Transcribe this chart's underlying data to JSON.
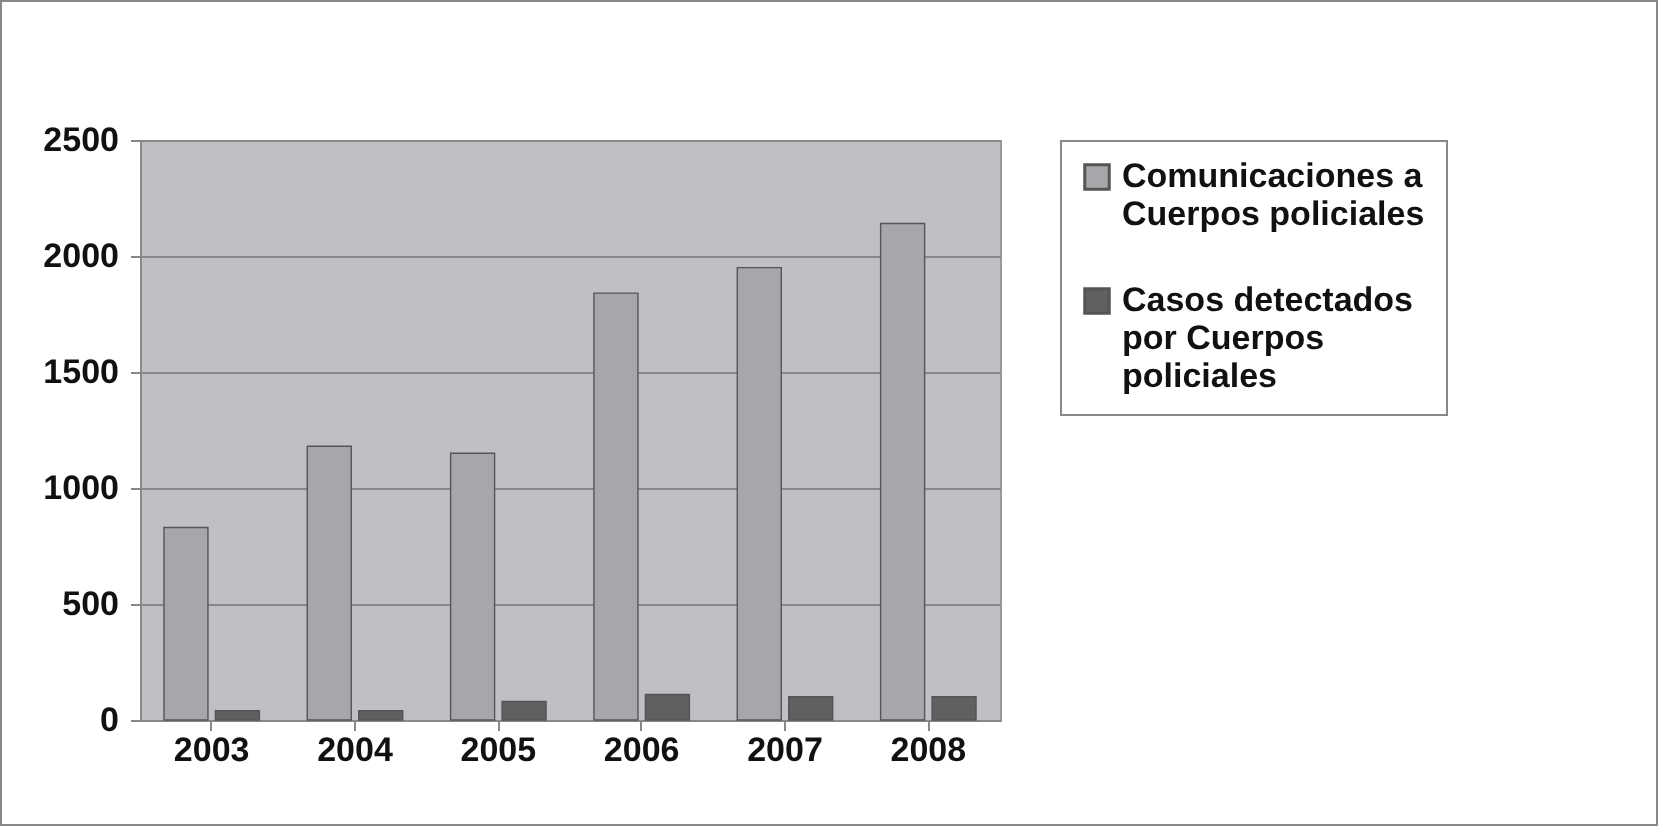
{
  "chart_data": {
    "type": "bar",
    "categories": [
      "2003",
      "2004",
      "2005",
      "2006",
      "2007",
      "2008"
    ],
    "series": [
      {
        "name": "Comunicaciones a Cuerpos policiales",
        "color": "#a6a7aa",
        "values": [
          830,
          1180,
          1150,
          1840,
          1950,
          2140
        ]
      },
      {
        "name": "Casos detectados por Cuerpos policiales",
        "color": "#5f6062",
        "values": [
          40,
          40,
          80,
          110,
          100,
          100
        ]
      }
    ],
    "ylim": [
      0,
      2500
    ],
    "yticks": [
      0,
      500,
      1000,
      1500,
      2000,
      2500
    ],
    "grid": "y",
    "legend": "right"
  }
}
